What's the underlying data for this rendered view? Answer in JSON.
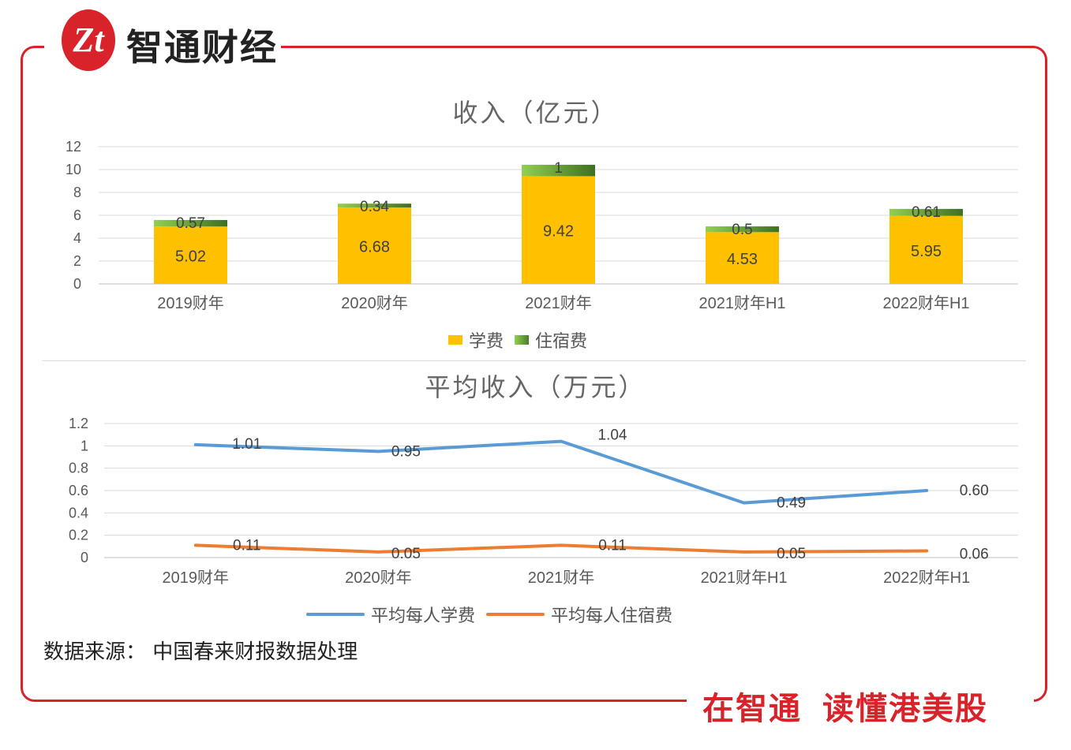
{
  "brand": {
    "logo_text": "Zt",
    "name": "智通财经",
    "slogan_left": "在智通",
    "slogan_right": "读懂港美股"
  },
  "colors": {
    "accent": "#d9232a",
    "tuition": "#ffc000",
    "lodging": "#70ad47",
    "line_tuition": "#5b9bd5",
    "line_lodging": "#ed7d31"
  },
  "source": "数据来源： 中国春来财报数据处理",
  "chart_data": [
    {
      "type": "bar",
      "stacked": true,
      "title": "收入（亿元）",
      "categories": [
        "2019财年",
        "2020财年",
        "2021财年",
        "2021财年H1",
        "2022财年H1"
      ],
      "series": [
        {
          "name": "学费",
          "values": [
            5.02,
            6.68,
            9.42,
            4.53,
            5.95
          ],
          "labels": [
            "5.02",
            "6.68",
            "9.42",
            "4.53",
            "5.95"
          ]
        },
        {
          "name": "住宿费",
          "values": [
            0.57,
            0.34,
            1,
            0.5,
            0.61
          ],
          "labels": [
            "0.57",
            "0.34",
            "1",
            "0.5",
            "0.61"
          ]
        }
      ],
      "ylim": [
        0,
        12
      ],
      "yticks": [
        "0",
        "2",
        "4",
        "6",
        "8",
        "10",
        "12"
      ],
      "legend": "bottom"
    },
    {
      "type": "line",
      "title": "平均收入（万元）",
      "categories": [
        "2019财年",
        "2020财年",
        "2021财年",
        "2021财年H1",
        "2022财年H1"
      ],
      "series": [
        {
          "name": "平均每人学费",
          "values": [
            1.01,
            0.95,
            1.04,
            0.49,
            0.6
          ],
          "labels": [
            "1.01",
            "0.95",
            "1.04",
            "0.49",
            "0.60"
          ]
        },
        {
          "name": "平均每人住宿费",
          "values": [
            0.11,
            0.05,
            0.11,
            0.05,
            0.06
          ],
          "labels": [
            "0.11",
            "0.05",
            "0.11",
            "0.05",
            "0.06"
          ]
        }
      ],
      "ylim": [
        0,
        1.2
      ],
      "yticks": [
        "0",
        "0.2",
        "0.4",
        "0.6",
        "0.8",
        "1",
        "1.2"
      ],
      "legend": "bottom"
    }
  ]
}
